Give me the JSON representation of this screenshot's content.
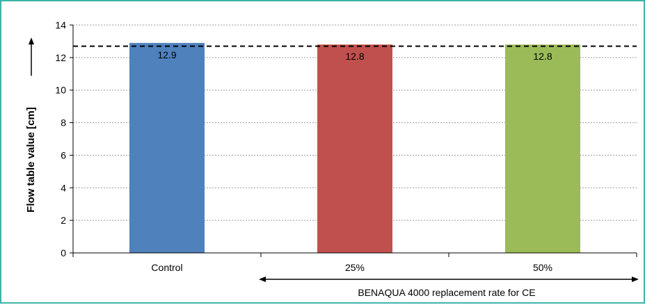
{
  "chart_data": {
    "type": "bar",
    "categories": [
      "Control",
      "25%",
      "50%"
    ],
    "values": [
      12.9,
      12.8,
      12.8
    ],
    "value_labels": [
      "12.9",
      "12.8",
      "12.8"
    ],
    "colors": [
      "#4f81bd",
      "#c0504d",
      "#9bbb59"
    ],
    "ylabel": "Flow table value [cm]",
    "ylim": [
      0,
      14
    ],
    "yticks": [
      0,
      2,
      4,
      6,
      8,
      10,
      12,
      14
    ],
    "grid": "horizontal-dotted",
    "reference_line": {
      "value": 12.7,
      "style": "dashed"
    },
    "annotation": "BENAQUA 4000 replacement rate for CE"
  }
}
